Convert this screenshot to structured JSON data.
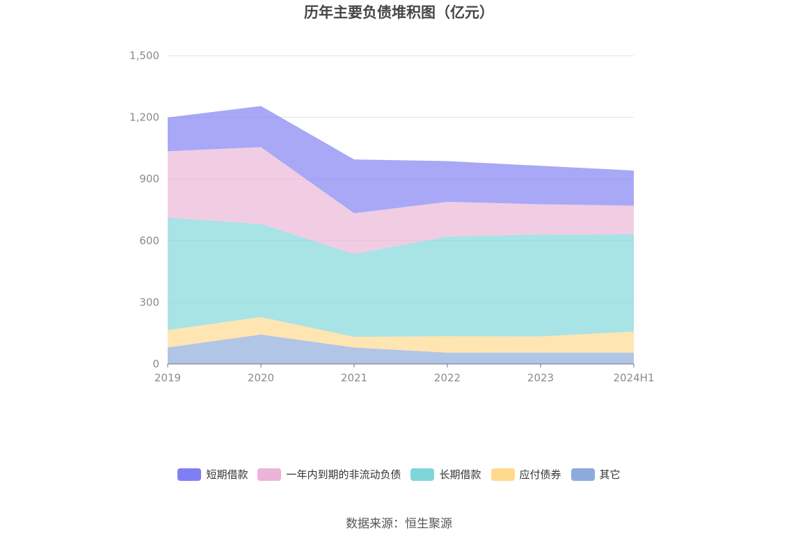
{
  "chart_data": {
    "type": "area",
    "title": "历年主要负债堆积图（亿元）",
    "categories": [
      "2019",
      "2020",
      "2021",
      "2022",
      "2023",
      "2024H1"
    ],
    "ylim": [
      0,
      1500
    ],
    "yticks": [
      0,
      300,
      600,
      900,
      1200,
      1500
    ],
    "ytick_labels": [
      "0",
      "300",
      "600",
      "900",
      "1,200",
      "1,500"
    ],
    "stacked": true,
    "grid": true,
    "legend_position": "bottom",
    "series": [
      {
        "name": "其它",
        "color": "#8caadc",
        "values": [
          80,
          143,
          80,
          55,
          55,
          55
        ]
      },
      {
        "name": "应付债券",
        "color": "#ffd98c",
        "values": [
          85,
          85,
          52,
          80,
          79,
          103
        ]
      },
      {
        "name": "长期借款",
        "color": "#7fd6d8",
        "values": [
          547,
          453,
          403,
          485,
          496,
          474
        ]
      },
      {
        "name": "一年内到期的非流动负债",
        "color": "#eab5d7",
        "values": [
          323,
          374,
          198,
          169,
          147,
          138
        ]
      },
      {
        "name": "短期借款",
        "color": "#7f7ff3",
        "values": [
          164,
          200,
          262,
          198,
          187,
          171
        ]
      }
    ]
  },
  "legend_order": [
    "短期借款",
    "一年内到期的非流动负债",
    "长期借款",
    "应付债券",
    "其它"
  ],
  "source": "数据来源：恒生聚源"
}
